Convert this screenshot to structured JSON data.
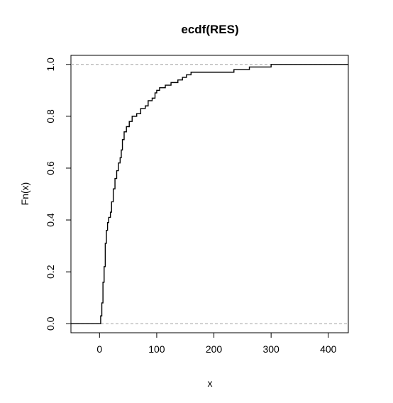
{
  "chart_data": {
    "type": "line",
    "subtype": "ecdf-step",
    "title": "ecdf(RES)",
    "xlabel": "x",
    "ylabel": "Fn(x)",
    "xlim": [
      -50,
      435
    ],
    "ylim": [
      -0.035,
      1.035
    ],
    "x_ticks": [
      0,
      100,
      200,
      300,
      400
    ],
    "x_tick_labels": [
      "0",
      "100",
      "200",
      "300",
      "400"
    ],
    "y_ticks": [
      0.0,
      0.2,
      0.4,
      0.6,
      0.8,
      1.0
    ],
    "y_tick_labels": [
      "0.0",
      "0.2",
      "0.4",
      "0.6",
      "0.8",
      "1.0"
    ],
    "reference_lines": [
      0,
      1
    ],
    "series": [
      {
        "points": [
          [
            0,
            0.0
          ],
          [
            2,
            0.03
          ],
          [
            4,
            0.08
          ],
          [
            6,
            0.16
          ],
          [
            8,
            0.22
          ],
          [
            10,
            0.31
          ],
          [
            12,
            0.36
          ],
          [
            14,
            0.39
          ],
          [
            16,
            0.41
          ],
          [
            19,
            0.43
          ],
          [
            21,
            0.47
          ],
          [
            24,
            0.52
          ],
          [
            27,
            0.56
          ],
          [
            30,
            0.59
          ],
          [
            33,
            0.62
          ],
          [
            36,
            0.64
          ],
          [
            38,
            0.67
          ],
          [
            40,
            0.71
          ],
          [
            43,
            0.74
          ],
          [
            47,
            0.76
          ],
          [
            52,
            0.78
          ],
          [
            57,
            0.8
          ],
          [
            65,
            0.81
          ],
          [
            72,
            0.83
          ],
          [
            80,
            0.84
          ],
          [
            85,
            0.86
          ],
          [
            92,
            0.87
          ],
          [
            97,
            0.89
          ],
          [
            100,
            0.9
          ],
          [
            105,
            0.91
          ],
          [
            115,
            0.92
          ],
          [
            125,
            0.93
          ],
          [
            137,
            0.94
          ],
          [
            145,
            0.95
          ],
          [
            152,
            0.96
          ],
          [
            160,
            0.97
          ],
          [
            220,
            0.97
          ],
          [
            235,
            0.98
          ],
          [
            262,
            0.99
          ],
          [
            300,
            1.0
          ],
          [
            387,
            1.0
          ]
        ]
      }
    ]
  },
  "colors": {
    "line": "#000000",
    "reference_line": "#a0a0a0",
    "frame": "#000000",
    "background": "#ffffff"
  }
}
